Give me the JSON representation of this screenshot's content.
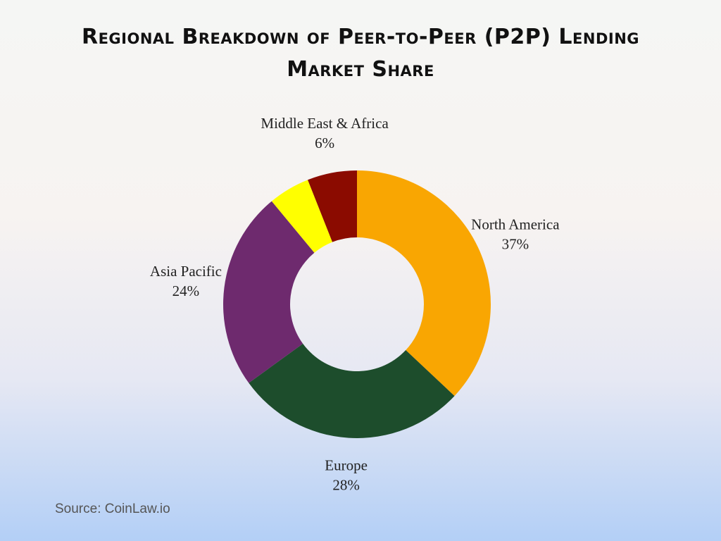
{
  "chart_data": {
    "type": "donut",
    "title": "Regional Breakdown of Peer-to-Peer (P2P) Lending Market Share",
    "categories": [
      "North America",
      "Europe",
      "Asia Pacific",
      null,
      "Middle East & Africa"
    ],
    "values": [
      37,
      28,
      24,
      5,
      6
    ],
    "value_labels": [
      "37%",
      "28%",
      "24%",
      null,
      "6%"
    ],
    "colors": [
      "#f9a602",
      "#1d4d2c",
      "#6e2a6e",
      "#ffff00",
      "#8b0b00"
    ],
    "source": "Source: CoinLaw.io"
  }
}
